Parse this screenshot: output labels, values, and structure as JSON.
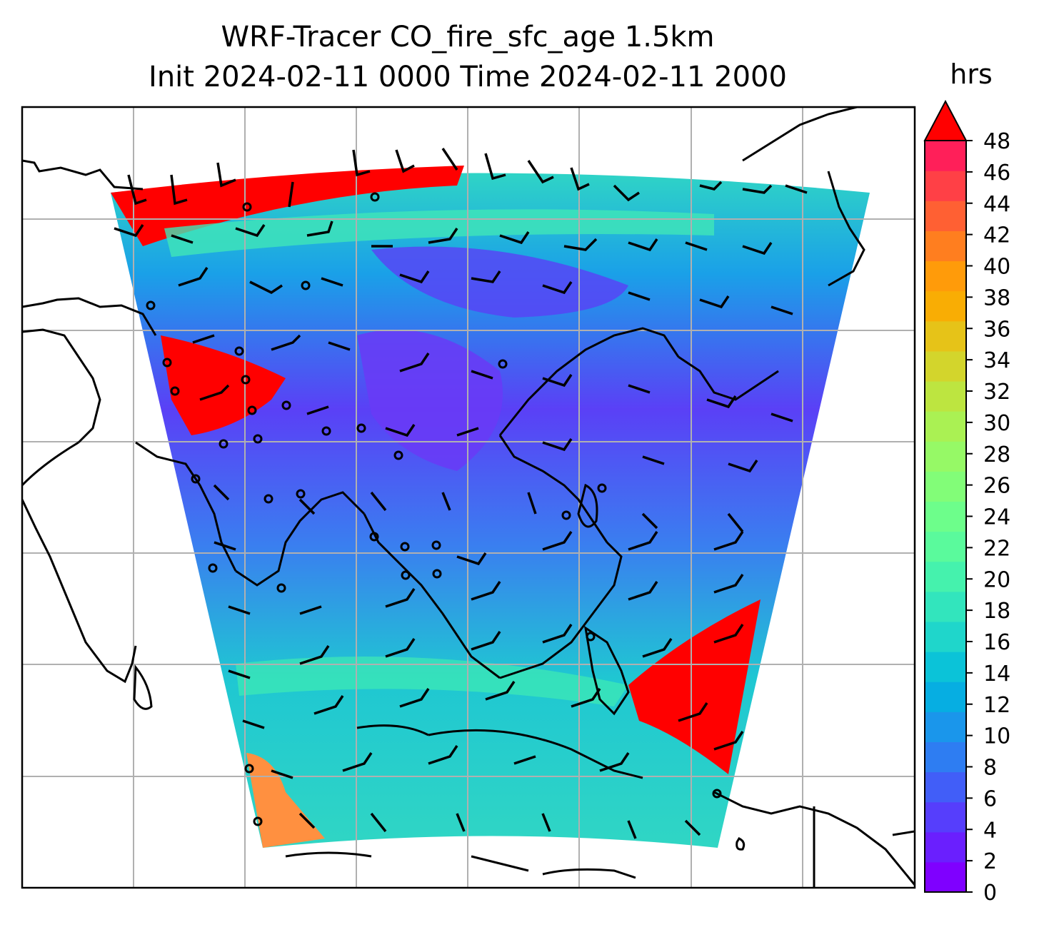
{
  "title_line1": "WRF-Tracer CO_fire_sfc_age 1.5km",
  "title_line2": "Init 2024-02-11 0000 Time 2024-02-11 2000",
  "colorbar": {
    "unit_label": "hrs",
    "ticks": [
      "0",
      "2",
      "4",
      "6",
      "8",
      "10",
      "12",
      "14",
      "16",
      "18",
      "20",
      "22",
      "24",
      "26",
      "28",
      "30",
      "32",
      "34",
      "36",
      "38",
      "40",
      "42",
      "44",
      "46",
      "48"
    ],
    "min": 0,
    "max": 48,
    "extend": "max",
    "colormap": "rainbow",
    "colors": [
      "#7f00ff",
      "#6a1ffe",
      "#563efc",
      "#415ef8",
      "#2e7df2",
      "#1a96eb",
      "#06aee2",
      "#0bc3d8",
      "#1fd6cb",
      "#32e5bd",
      "#45f2ad",
      "#5afa9c",
      "#6dfe8b",
      "#82fd78",
      "#96f966",
      "#aaf153",
      "#bde540",
      "#d3d52c",
      "#e6c318",
      "#f9ad04",
      "#ff9b0a",
      "#ff7e1f",
      "#ff6033",
      "#ff4046",
      "#ff1f59",
      "#ff0000"
    ]
  },
  "map": {
    "gridlines": true,
    "features": [
      "coastlines",
      "country borders",
      "wind barbs",
      "calm circles"
    ]
  }
}
